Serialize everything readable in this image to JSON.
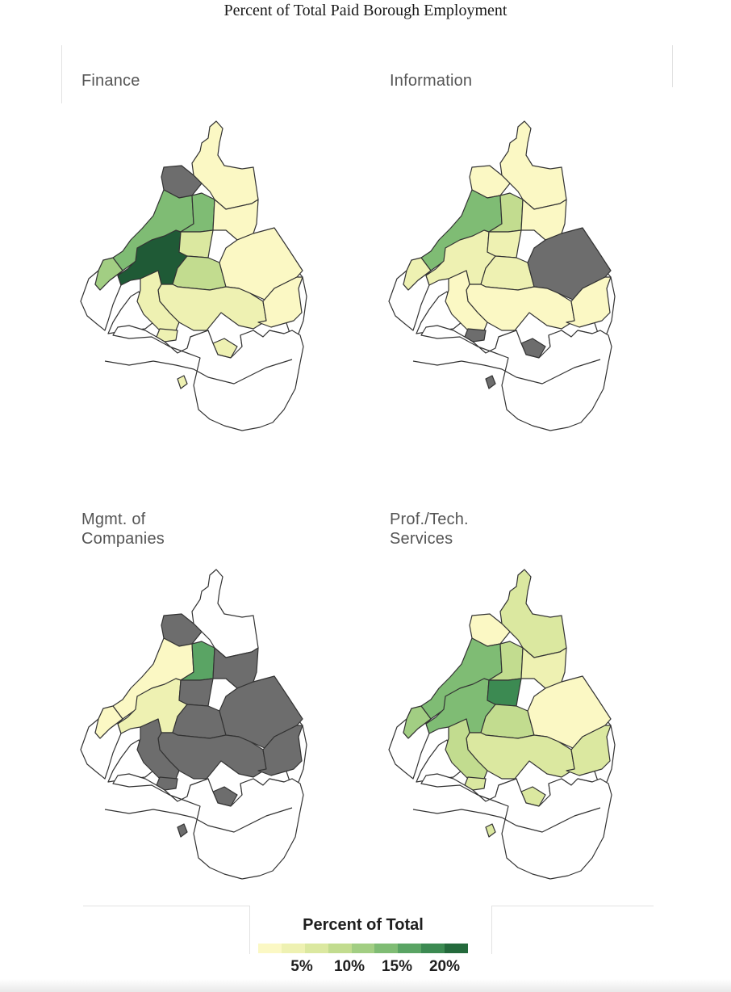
{
  "title": "Percent of Total Paid Borough Employment",
  "panels": [
    {
      "label": "Finance"
    },
    {
      "label": "Information"
    },
    {
      "label": "Mgmt.  of\nCompanies"
    },
    {
      "label": "Prof./Tech.\nServices"
    }
  ],
  "legend": {
    "title": "Percent  of  Total",
    "ticks": [
      "5%",
      "10%",
      "15%",
      "20%"
    ],
    "colors": [
      "#fbf8c4",
      "#eef1b2",
      "#dbe8a0",
      "#c2dc8f",
      "#a2ce83",
      "#7fbc74",
      "#5aa464",
      "#3c8a52",
      "#246a3c"
    ]
  },
  "colors": {
    "no_data": "#6d6d6d",
    "outside": "#ffffff",
    "outline": "#333333"
  },
  "region_ids": [
    "north_tip",
    "nw_small",
    "nw_strip",
    "north_center",
    "east_band",
    "center_core",
    "central_small",
    "center_east",
    "east_big",
    "west_end",
    "south_center",
    "southwest",
    "southeast",
    "southern_fragments",
    "far_south"
  ],
  "fills": [
    {
      "north_tip": "#fbf8c4",
      "nw_small": "#6d6d6d",
      "nw_strip": "#7fbc74",
      "north_center": "#7fbc74",
      "east_band": "#fbf8c4",
      "center_core": "#1f5a36",
      "central_small": "#dbe8a0",
      "center_east": "#c2dc8f",
      "east_big": "#fbf8c4",
      "west_end": "#a2ce83",
      "south_center": "#eef1b2",
      "southwest": "#eef1b2",
      "southeast": "#fbf8c4",
      "southern_fragments": "#eef1b2",
      "far_south": "#ffffff"
    },
    {
      "north_tip": "#fbf8c4",
      "nw_small": "#fbf8c4",
      "nw_strip": "#7fbc74",
      "north_center": "#c2dc8f",
      "east_band": "#fbf8c4",
      "center_core": "#eef1b2",
      "central_small": "#eef1b2",
      "center_east": "#eef1b2",
      "east_big": "#6d6d6d",
      "west_end": "#eef1b2",
      "south_center": "#fbf8c4",
      "southwest": "#fbf8c4",
      "southeast": "#fbf8c4",
      "southern_fragments": "#6d6d6d",
      "far_south": "#ffffff"
    },
    {
      "north_tip": "#ffffff",
      "nw_small": "#6d6d6d",
      "nw_strip": "#fbf8c4",
      "north_center": "#5aa464",
      "east_band": "#6d6d6d",
      "center_core": "#eef1b2",
      "central_small": "#6d6d6d",
      "center_east": "#6d6d6d",
      "east_big": "#6d6d6d",
      "west_end": "#fbf8c4",
      "south_center": "#6d6d6d",
      "southwest": "#6d6d6d",
      "southeast": "#6d6d6d",
      "southern_fragments": "#6d6d6d",
      "far_south": "#ffffff"
    },
    {
      "north_tip": "#dbe8a0",
      "nw_small": "#fbf8c4",
      "nw_strip": "#7fbc74",
      "north_center": "#c2dc8f",
      "east_band": "#eef1b2",
      "center_core": "#7fbc74",
      "central_small": "#3c8a52",
      "center_east": "#c2dc8f",
      "east_big": "#fbf8c4",
      "west_end": "#a2ce83",
      "south_center": "#dbe8a0",
      "southwest": "#c2dc8f",
      "southeast": "#dbe8a0",
      "southern_fragments": "#dbe8a0",
      "far_south": "#ffffff"
    }
  ]
}
